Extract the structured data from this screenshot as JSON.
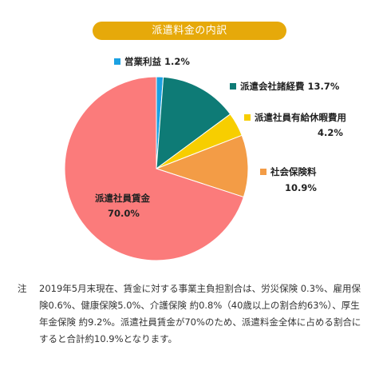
{
  "title": "派遣料金の内訳",
  "chart_data": {
    "type": "pie",
    "slices": [
      {
        "label": "営業利益",
        "value": 1.2,
        "value_label": "1.2%",
        "color": "#1ba1e2"
      },
      {
        "label": "派遣会社諸経費",
        "value": 13.7,
        "value_label": "13.7%",
        "color": "#0e7b76"
      },
      {
        "label": "派遣社員有給休暇費用",
        "value": 4.2,
        "value_label": "4.2%",
        "color": "#f7ce00"
      },
      {
        "label": "社会保険料",
        "value": 10.9,
        "value_label": "10.9%",
        "color": "#f39c46"
      },
      {
        "label": "派遣社員賃金",
        "value": 70.0,
        "value_label": "70.0%",
        "color": "#fb7b7b"
      }
    ]
  },
  "labels": {
    "profit": {
      "name": "営業利益",
      "value": "1.2%"
    },
    "expenses": {
      "name": "派遣会社諸経費",
      "value": "13.7%"
    },
    "paid_leave": {
      "name": "派遣社員有給休暇費用",
      "value": "4.2%"
    },
    "insurance": {
      "name": "社会保険料",
      "value": "10.9%"
    },
    "wages": {
      "name": "派遣社員賃金",
      "value": "70.0%"
    }
  },
  "note": {
    "mark": "注",
    "text": "2019年5月末現在、賃金に対する事業主負担割合は、労災保険 0.3%、雇用保険0.6%、健康保険5.0%、介護保険 約0.8%（40歳以上の割合約63%）、厚生年金保険 約9.2%。派遣社員賃金が70%のため、派遣料金全体に占める割合にすると合計約10.9%となります。"
  }
}
